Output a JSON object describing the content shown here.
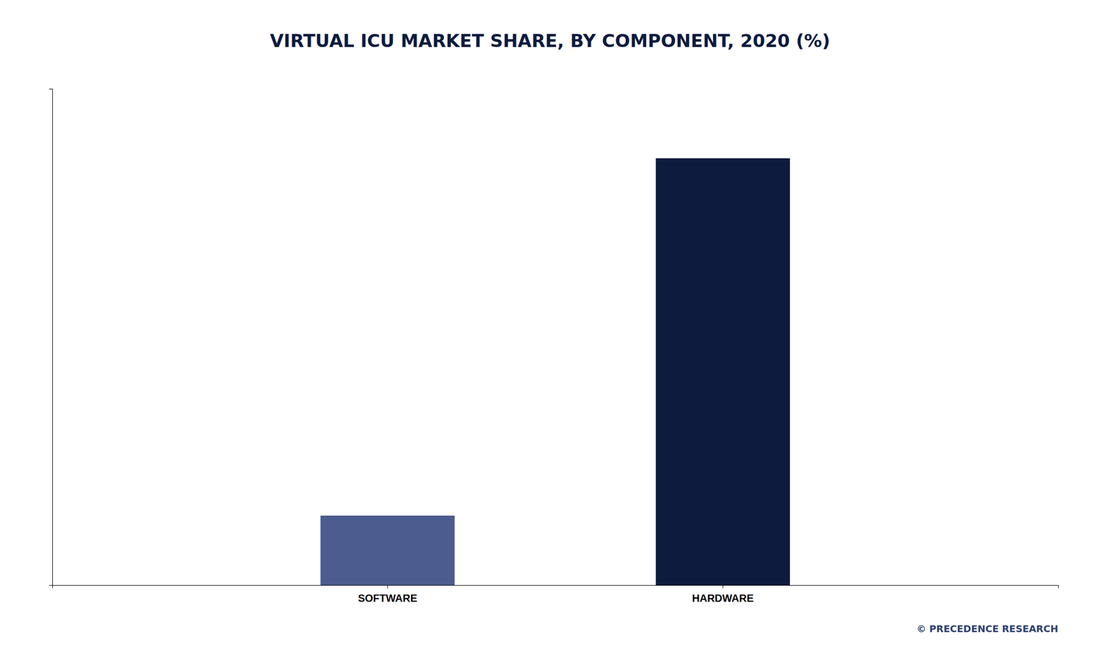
{
  "chart_data": {
    "type": "bar",
    "title": "VIRTUAL ICU MARKET SHARE, BY COMPONENT, 2020 (%)",
    "categories": [
      "SOFTWARE",
      "HARDWARE"
    ],
    "values": [
      14,
      86
    ],
    "colors": [
      "#4d5c8e",
      "#0d1b3e"
    ],
    "ylim": [
      0,
      100
    ],
    "grid": false,
    "tick_labels": "x",
    "annotations": [
      "© PRECEDENCE RESEARCH"
    ]
  }
}
